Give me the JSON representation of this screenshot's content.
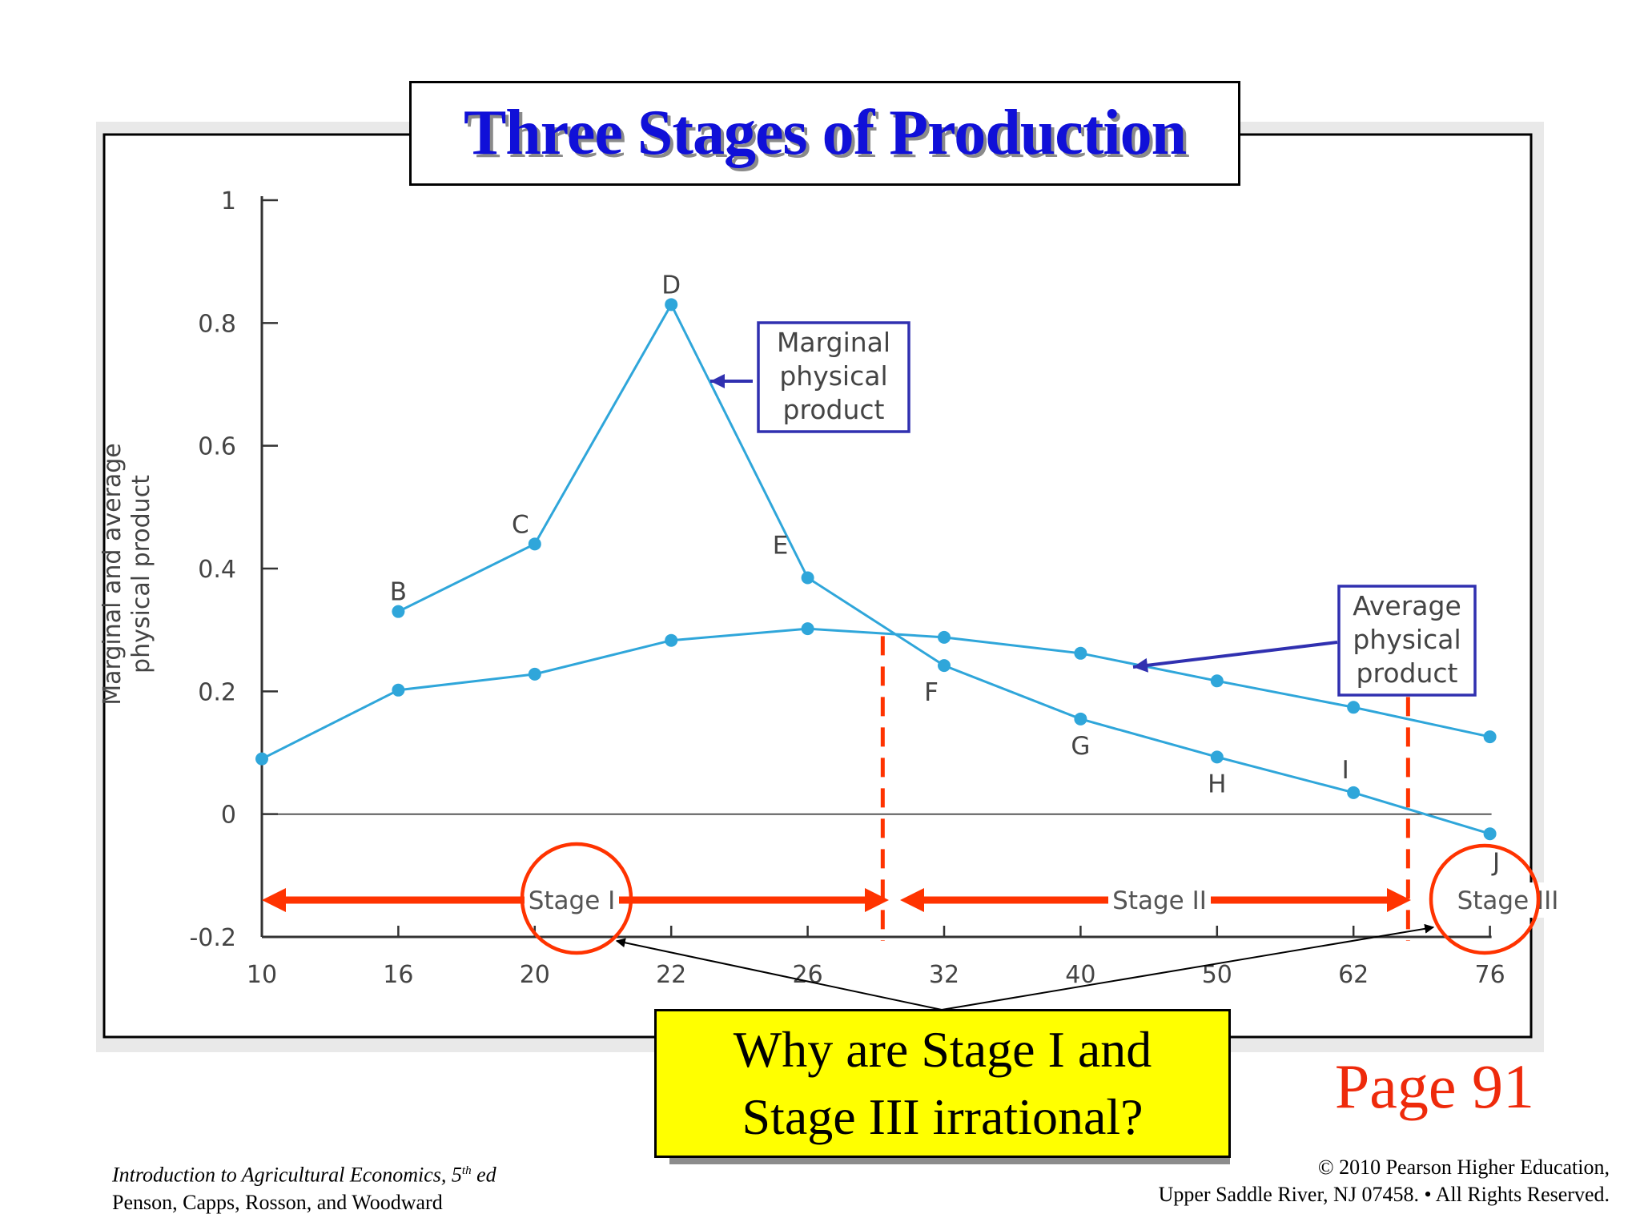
{
  "slide": {
    "title": "Three Stages of Production",
    "question": "Why are Stage I and\nStage III irrational?",
    "page_reference": "Page 91",
    "footer_left": {
      "book_title": "Introduction to Agricultural Economics, 5",
      "edition_sup": "th",
      "edition_suffix": " ed",
      "authors": "Penson, Capps, Rosson, and Woodward"
    },
    "footer_right": {
      "line1": "© 2010 Pearson Higher Education,",
      "line2": "Upper Saddle River, NJ 07458. • All Rights Reserved."
    }
  },
  "colors": {
    "curve": "#2fa6da",
    "callout_border": "#3030b0",
    "stage_arrow": "#ff3300",
    "title_text": "#1010d8",
    "question_fill": "#ffff00",
    "page_text": "#ee2a0b"
  },
  "chart_data": {
    "type": "line",
    "title": "",
    "ylabel_lines": [
      "Marginal and average",
      "physical product"
    ],
    "xlabel": "",
    "categories": [
      "10",
      "16",
      "20",
      "22",
      "26",
      "32",
      "40",
      "50",
      "62",
      "76"
    ],
    "yticks": [
      "1",
      "0.8",
      "0.6",
      "0.4",
      "0.2",
      "0",
      "-0.2"
    ],
    "ylim": [
      -0.2,
      1
    ],
    "grid": false,
    "series": [
      {
        "name": "Marginal physical product",
        "callout_lines": [
          "Marginal",
          "physical",
          "product"
        ],
        "values": [
          null,
          0.33,
          0.44,
          0.83,
          0.385,
          0.242,
          0.155,
          0.093,
          0.035,
          -0.032
        ],
        "point_labels": [
          "",
          "B",
          "C",
          "D",
          "E",
          "F",
          "G",
          "H",
          "I",
          "J"
        ]
      },
      {
        "name": "Average physical product",
        "callout_lines": [
          "Average",
          "physical",
          "product"
        ],
        "values": [
          0.09,
          0.202,
          0.228,
          0.283,
          0.302,
          0.288,
          0.262,
          0.217,
          0.174,
          0.126
        ]
      }
    ],
    "stage_boundaries": [
      {
        "x": 29.3,
        "note": "MPP crosses APP"
      },
      {
        "x": 67.6,
        "note": "MPP crosses zero"
      }
    ],
    "stages": [
      "Stage I",
      "Stage II",
      "Stage III"
    ]
  }
}
